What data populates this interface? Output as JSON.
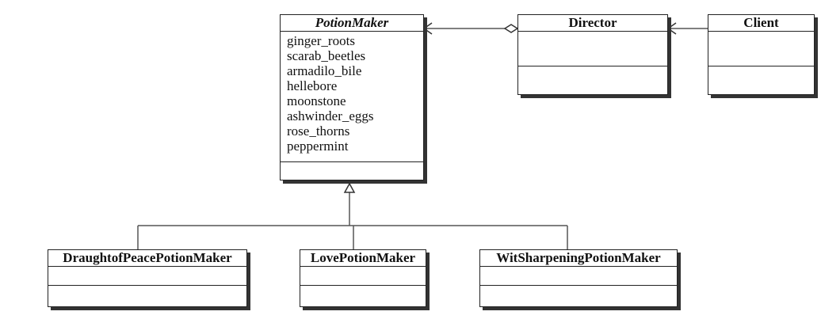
{
  "classes": {
    "potion_maker": {
      "name": "PotionMaker",
      "attributes": [
        "ginger_roots",
        "scarab_beetles",
        "armadilo_bile",
        "hellebore",
        "moonstone",
        "ashwinder_eggs",
        "rose_thorns",
        "peppermint"
      ]
    },
    "director": {
      "name": "Director"
    },
    "client": {
      "name": "Client"
    },
    "draught_of_peace": {
      "name": "DraughtofPeacePotionMaker"
    },
    "love": {
      "name": "LovePotionMaker"
    },
    "wit_sharpening": {
      "name": "WitSharpeningPotionMaker"
    }
  },
  "relationships": [
    {
      "type": "aggregation",
      "from": "Director",
      "to": "PotionMaker"
    },
    {
      "type": "association",
      "from": "Client",
      "to": "Director"
    },
    {
      "type": "generalization",
      "from": "DraughtofPeacePotionMaker",
      "to": "PotionMaker"
    },
    {
      "type": "generalization",
      "from": "LovePotionMaker",
      "to": "PotionMaker"
    },
    {
      "type": "generalization",
      "from": "WitSharpeningPotionMaker",
      "to": "PotionMaker"
    }
  ]
}
